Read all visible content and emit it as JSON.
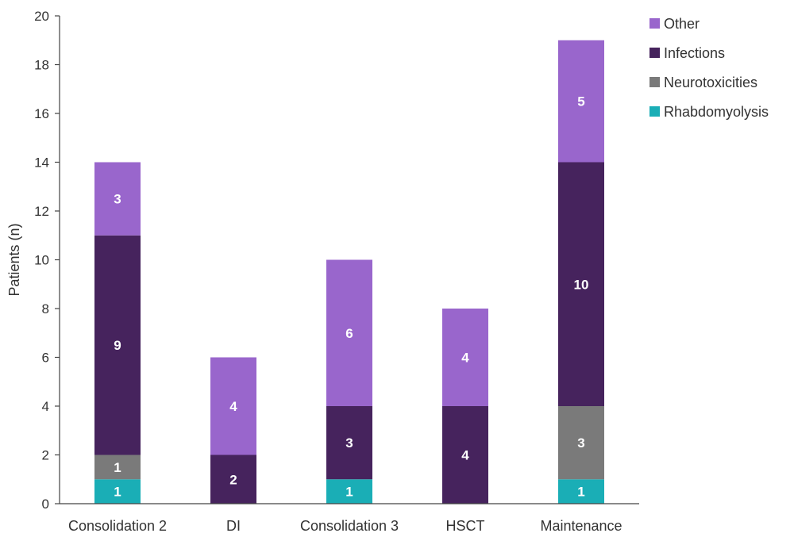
{
  "chart_data": {
    "type": "bar",
    "stacked": true,
    "title": "",
    "xlabel": "",
    "ylabel": "Patients (n)",
    "ylim": [
      0,
      20
    ],
    "yticks": [
      0,
      2,
      4,
      6,
      8,
      10,
      12,
      14,
      16,
      18,
      20
    ],
    "grid": false,
    "legend_position": "top-right",
    "categories": [
      "Consolidation 2",
      "DI",
      "Consolidation 3",
      "HSCT",
      "Maintenance"
    ],
    "series": [
      {
        "name": "Rhabdomyolysis",
        "color": "#1aaeb6",
        "values": [
          1,
          0,
          1,
          0,
          1
        ]
      },
      {
        "name": "Neurotoxicities",
        "color": "#7a7a7a",
        "values": [
          1,
          0,
          0,
          0,
          3
        ]
      },
      {
        "name": "Infections",
        "color": "#46235d",
        "values": [
          9,
          2,
          3,
          4,
          10
        ]
      },
      {
        "name": "Other",
        "color": "#9966cc",
        "values": [
          3,
          4,
          6,
          4,
          5
        ]
      }
    ],
    "legend_order": [
      "Other",
      "Infections",
      "Neurotoxicities",
      "Rhabdomyolysis"
    ]
  }
}
